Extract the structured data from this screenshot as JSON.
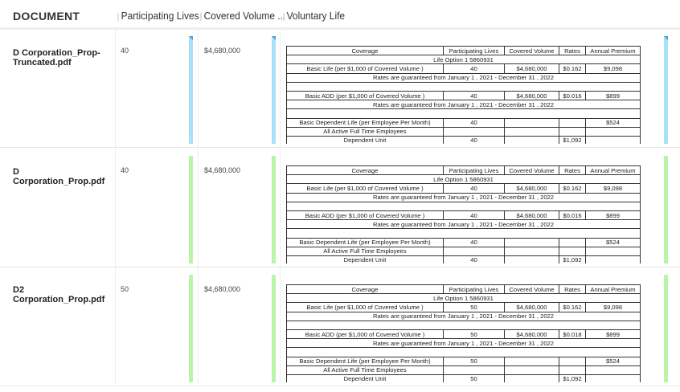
{
  "columns": {
    "document": "DOCUMENT",
    "participating_lives": "Participating Lives",
    "covered_volume": "Covered Volume ...",
    "voluntary_life": "Voluntary Life"
  },
  "colors": {
    "blue_bar": "#a8e1f7",
    "green_bar": "#b8f5a6"
  },
  "table_header": [
    "Coverage",
    "Participating Lives",
    "Covered Volume",
    "Rates",
    "Annual Premium"
  ],
  "rows": [
    {
      "document": "D Corporation_Prop-Truncated.pdf",
      "participating_lives": "40",
      "covered_volume": "$4,680,000",
      "status_color": "blue",
      "table": {
        "option": "Life Option 1 5860931",
        "basic_life": [
          "Basic Life (per $1,000 of Covered Volume )",
          "40",
          "$4,680,000",
          "$0.162",
          "$9,098"
        ],
        "guarantee": "Rates are guaranteed from January 1 , 2021 - December 31 , 2022",
        "basic_add": [
          "Basic ADD (per $1,000 of Covered Volume )",
          "40",
          "$4,680,000",
          "$0.016",
          "$899"
        ],
        "dependent_life": [
          "Basic Dependent Life (per Employee Per Month)",
          "40",
          "",
          "",
          "$524"
        ],
        "employees": "All Active Full Time Employees",
        "dependent_unit": [
          "Dependent Unit",
          "40",
          "",
          "$1,092",
          ""
        ]
      }
    },
    {
      "document": "D Corporation_Prop.pdf",
      "participating_lives": "40",
      "covered_volume": "$4,680,000",
      "status_color": "green",
      "table": {
        "option": "Life Option 1 5860931",
        "basic_life": [
          "Basic Life (per $1,000 of Covered Volume )",
          "40",
          "$4,680,000",
          "$0.162",
          "$9,098"
        ],
        "guarantee": "Rates are guaranteed from January 1 , 2021 - December 31 , 2022",
        "basic_add": [
          "Basic ADD (per $1,000 of Covered Volume )",
          "40",
          "$4,680,000",
          "$0.016",
          "$899"
        ],
        "dependent_life": [
          "Basic Dependent Life (per Employee Per Month)",
          "40",
          "",
          "",
          "$524"
        ],
        "employees": "All Active Full Time Employees",
        "dependent_unit": [
          "Dependent Unit",
          "40",
          "",
          "$1,092",
          ""
        ]
      }
    },
    {
      "document": "D2 Corporation_Prop.pdf",
      "participating_lives": "50",
      "covered_volume": "$4,680,000",
      "status_color": "green",
      "table": {
        "option": "Life Option 1 5860931",
        "basic_life": [
          "Basic Life (per $1,000 of Covered Volume )",
          "50",
          "$4,680,000",
          "$0.162",
          "$9,098"
        ],
        "guarantee": "Rates are guaranteed from January 1 , 2021 - December 31 , 2022",
        "basic_add": [
          "Basic ADD (per $1,000 of Covered Volume )",
          "50",
          "$4,680,000",
          "$0.018",
          "$899"
        ],
        "dependent_life": [
          "Basic Dependent Life (per Employee Per Month)",
          "50",
          "",
          "",
          "$524"
        ],
        "employees": "All Active Full Time Employees",
        "dependent_unit": [
          "Dependent Unit",
          "50",
          "",
          "$1,092",
          ""
        ]
      }
    }
  ]
}
